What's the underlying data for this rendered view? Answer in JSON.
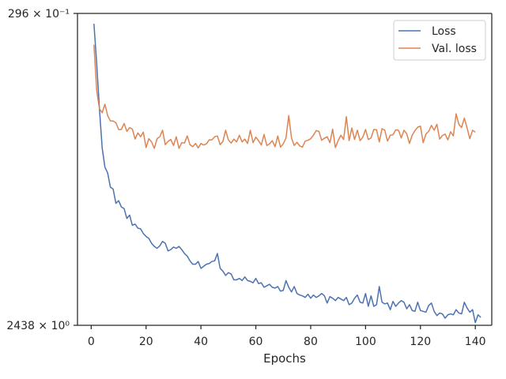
{
  "chart_data": {
    "type": "line",
    "title": "",
    "xlabel": "Epochs",
    "ylabel": "",
    "xlim": [
      -5,
      146
    ],
    "x_ticks": [
      0,
      20,
      40,
      60,
      80,
      100,
      120,
      140
    ],
    "y_scale": "log",
    "y_tick_labels": [
      "296 × 10⁻¹",
      "2438 × 10⁰"
    ],
    "legend_position": "upper-right",
    "grid": false,
    "x_start": 1,
    "series": [
      {
        "name": "Loss",
        "color": "#4c72b0",
        "values": [
          0.955,
          0.8,
          0.655,
          0.55,
          0.505,
          0.492,
          0.462,
          0.458,
          0.43,
          0.435,
          0.423,
          0.42,
          0.402,
          0.408,
          0.39,
          0.392,
          0.385,
          0.384,
          0.376,
          0.371,
          0.368,
          0.36,
          0.355,
          0.352,
          0.356,
          0.363,
          0.36,
          0.348,
          0.35,
          0.354,
          0.352,
          0.355,
          0.35,
          0.344,
          0.34,
          0.333,
          0.328,
          0.328,
          0.332,
          0.322,
          0.325,
          0.328,
          0.329,
          0.332,
          0.333,
          0.344,
          0.322,
          0.318,
          0.312,
          0.316,
          0.314,
          0.306,
          0.306,
          0.308,
          0.305,
          0.31,
          0.305,
          0.304,
          0.302,
          0.308,
          0.301,
          0.302,
          0.296,
          0.298,
          0.3,
          0.296,
          0.295,
          0.297,
          0.291,
          0.292,
          0.305,
          0.296,
          0.29,
          0.297,
          0.288,
          0.286,
          0.285,
          0.283,
          0.287,
          0.282,
          0.286,
          0.283,
          0.285,
          0.288,
          0.285,
          0.276,
          0.284,
          0.282,
          0.279,
          0.283,
          0.281,
          0.279,
          0.283,
          0.274,
          0.276,
          0.282,
          0.286,
          0.277,
          0.276,
          0.288,
          0.272,
          0.285,
          0.272,
          0.274,
          0.297,
          0.277,
          0.275,
          0.276,
          0.268,
          0.278,
          0.272,
          0.276,
          0.279,
          0.277,
          0.269,
          0.274,
          0.267,
          0.266,
          0.277,
          0.267,
          0.266,
          0.265,
          0.273,
          0.276,
          0.266,
          0.261,
          0.264,
          0.263,
          0.258,
          0.262,
          0.263,
          0.262,
          0.268,
          0.264,
          0.263,
          0.277,
          0.27,
          0.265,
          0.268,
          0.253,
          0.262,
          0.259
        ]
      },
      {
        "name": "Val. loss",
        "color": "#dd8452",
        "values": [
          0.87,
          0.71,
          0.655,
          0.643,
          0.668,
          0.635,
          0.62,
          0.62,
          0.615,
          0.597,
          0.597,
          0.613,
          0.592,
          0.602,
          0.598,
          0.572,
          0.588,
          0.578,
          0.59,
          0.551,
          0.573,
          0.565,
          0.549,
          0.573,
          0.578,
          0.595,
          0.558,
          0.566,
          0.571,
          0.556,
          0.578,
          0.549,
          0.563,
          0.562,
          0.58,
          0.558,
          0.553,
          0.561,
          0.55,
          0.561,
          0.557,
          0.56,
          0.57,
          0.57,
          0.578,
          0.58,
          0.558,
          0.566,
          0.595,
          0.57,
          0.562,
          0.572,
          0.565,
          0.582,
          0.565,
          0.572,
          0.561,
          0.595,
          0.563,
          0.577,
          0.568,
          0.557,
          0.584,
          0.556,
          0.56,
          0.568,
          0.553,
          0.58,
          0.552,
          0.56,
          0.575,
          0.635,
          0.575,
          0.556,
          0.564,
          0.555,
          0.552,
          0.567,
          0.569,
          0.573,
          0.582,
          0.594,
          0.592,
          0.569,
          0.574,
          0.578,
          0.563,
          0.598,
          0.551,
          0.568,
          0.582,
          0.571,
          0.632,
          0.568,
          0.601,
          0.571,
          0.595,
          0.568,
          0.577,
          0.597,
          0.571,
          0.575,
          0.597,
          0.596,
          0.565,
          0.599,
          0.595,
          0.567,
          0.582,
          0.583,
          0.596,
          0.595,
          0.575,
          0.595,
          0.586,
          0.561,
          0.582,
          0.594,
          0.603,
          0.606,
          0.563,
          0.585,
          0.592,
          0.608,
          0.595,
          0.611,
          0.572,
          0.581,
          0.585,
          0.57,
          0.591,
          0.58,
          0.64,
          0.611,
          0.602,
          0.628,
          0.601,
          0.573,
          0.595,
          0.59
        ]
      }
    ]
  }
}
